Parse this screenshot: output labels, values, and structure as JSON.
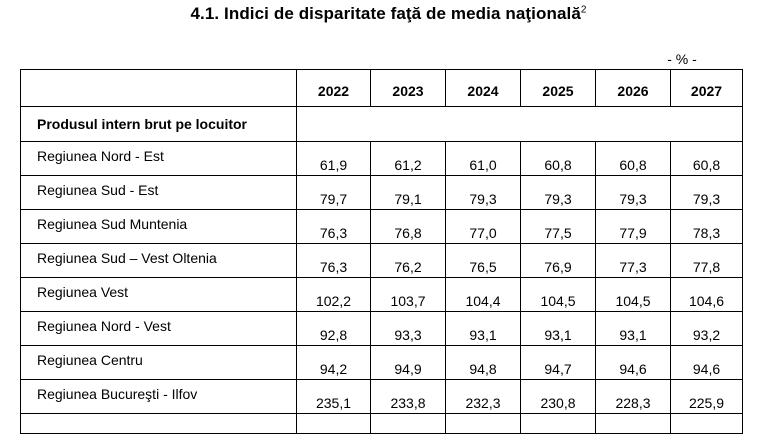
{
  "title": "4.1. Indici de disparitate faţă de media naţională",
  "footnote_marker": "2",
  "unit": "- % -",
  "years": [
    "2022",
    "2023",
    "2024",
    "2025",
    "2026",
    "2027"
  ],
  "section_label": "Produsul intern brut pe locuitor",
  "rows": [
    {
      "region": "Regiunea Nord - Est",
      "values": [
        "61,9",
        "61,2",
        "61,0",
        "60,8",
        "60,8",
        "60,8"
      ]
    },
    {
      "region": "Regiunea Sud - Est",
      "values": [
        "79,7",
        "79,1",
        "79,3",
        "79,3",
        "79,3",
        "79,3"
      ]
    },
    {
      "region": "Regiunea Sud Muntenia",
      "values": [
        "76,3",
        "76,8",
        "77,0",
        "77,5",
        "77,9",
        "78,3"
      ]
    },
    {
      "region": "Regiunea Sud – Vest Oltenia",
      "values": [
        "76,3",
        "76,2",
        "76,5",
        "76,9",
        "77,3",
        "77,8"
      ]
    },
    {
      "region": "Regiunea Vest",
      "values": [
        "102,2",
        "103,7",
        "104,4",
        "104,5",
        "104,5",
        "104,6"
      ]
    },
    {
      "region": "Regiunea Nord - Vest",
      "values": [
        "92,8",
        "93,3",
        "93,1",
        "93,1",
        "93,1",
        "93,2"
      ]
    },
    {
      "region": "Regiunea Centru",
      "values": [
        "94,2",
        "94,9",
        "94,8",
        "94,7",
        "94,6",
        "94,6"
      ]
    },
    {
      "region": "Regiunea Bucureşti - Ilfov",
      "values": [
        "235,1",
        "233,8",
        "232,3",
        "230,8",
        "228,3",
        "225,9"
      ]
    }
  ]
}
